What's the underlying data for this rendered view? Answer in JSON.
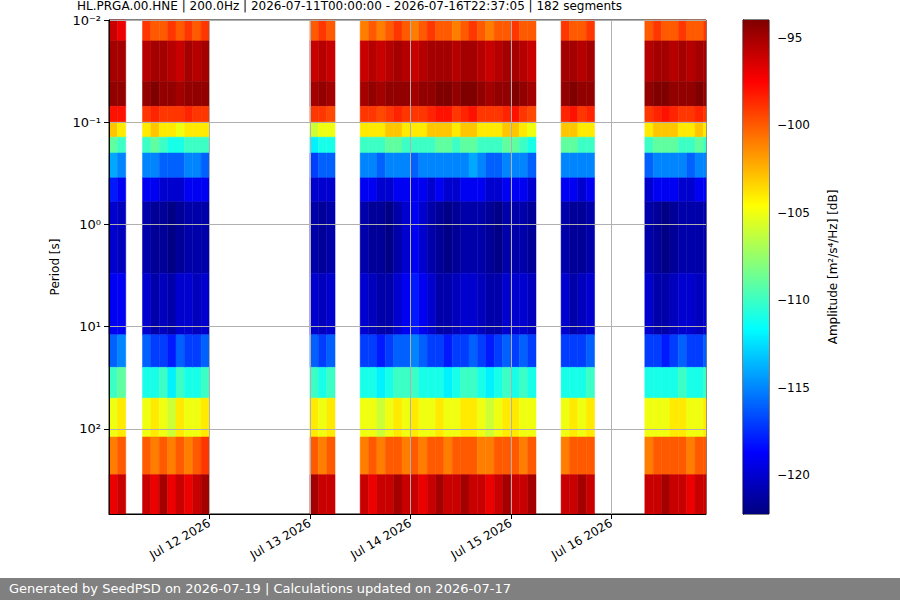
{
  "chart_data": {
    "type": "heatmap",
    "title": "HL.PRGA.00.HNE | 200.0Hz | 2026-07-11T00:00:00 - 2026-07-16T22:37:05 | 182 segments",
    "y_label": "Period [s]",
    "footer": "Generated by SeedPSD on 2026-07-19 | Calculations updated on 2026-07-17",
    "log": "y",
    "grid": true,
    "xlim": [
      "2026-07-11T00:00",
      "2026-07-16T22:37:05"
    ],
    "xticks": [
      {
        "value": "2026-07-12T00:00",
        "label": "Jul 12 2026"
      },
      {
        "value": "2026-07-13T00:00",
        "label": "Jul 13 2026"
      },
      {
        "value": "2026-07-14T00:00",
        "label": "Jul 14 2026"
      },
      {
        "value": "2026-07-15T00:00",
        "label": "Jul 15 2026"
      },
      {
        "value": "2026-07-16T00:00",
        "label": "Jul 16 2026"
      }
    ],
    "ylim": [
      0.01,
      680
    ],
    "yticks": [
      {
        "value": 0.01,
        "label": "10⁻²"
      },
      {
        "value": 0.1,
        "label": "10⁻¹"
      },
      {
        "value": 1,
        "label": "10⁰"
      },
      {
        "value": 10,
        "label": "10¹"
      },
      {
        "value": 100,
        "label": "10²"
      }
    ],
    "colorbar": {
      "label": "Amplitude [m²/s⁴/Hz] [dB]",
      "range": [
        -122.2,
        -94
      ],
      "ticks": [
        {
          "value": -95,
          "label": "−95"
        },
        {
          "value": -100,
          "label": "−100"
        },
        {
          "value": -105,
          "label": "−105"
        },
        {
          "value": -110,
          "label": "−110"
        },
        {
          "value": -115,
          "label": "−115"
        },
        {
          "value": -120,
          "label": "−120"
        }
      ]
    },
    "period_edges": [
      0.01,
      0.016,
      0.04,
      0.07,
      0.1,
      0.14,
      0.2,
      0.35,
      0.6,
      3,
      12,
      25,
      50,
      120,
      280,
      680
    ],
    "time_edges": [
      "2026-07-11T00:00",
      "2026-07-11T02:00",
      "2026-07-11T04:00",
      "2026-07-11T06:00",
      "2026-07-11T08:00",
      "2026-07-11T10:00",
      "2026-07-11T12:00",
      "2026-07-11T14:00",
      "2026-07-11T16:00",
      "2026-07-11T18:00",
      "2026-07-11T20:00",
      "2026-07-11T22:00",
      "2026-07-12T00:00",
      "2026-07-12T02:00",
      "2026-07-12T04:00",
      "2026-07-12T06:00",
      "2026-07-12T08:00",
      "2026-07-12T10:00",
      "2026-07-12T12:00",
      "2026-07-12T14:00",
      "2026-07-12T16:00",
      "2026-07-12T18:00",
      "2026-07-12T20:00",
      "2026-07-12T22:00",
      "2026-07-13T00:00",
      "2026-07-13T02:00",
      "2026-07-13T04:00",
      "2026-07-13T06:00",
      "2026-07-13T08:00",
      "2026-07-13T10:00",
      "2026-07-13T12:00",
      "2026-07-13T14:00",
      "2026-07-13T16:00",
      "2026-07-13T18:00",
      "2026-07-13T20:00",
      "2026-07-13T22:00",
      "2026-07-14T00:00",
      "2026-07-14T02:00",
      "2026-07-14T04:00",
      "2026-07-14T06:00",
      "2026-07-14T08:00",
      "2026-07-14T10:00",
      "2026-07-14T12:00",
      "2026-07-14T14:00",
      "2026-07-14T16:00",
      "2026-07-14T18:00",
      "2026-07-14T20:00",
      "2026-07-14T22:00",
      "2026-07-15T00:00",
      "2026-07-15T02:00",
      "2026-07-15T04:00",
      "2026-07-15T06:00",
      "2026-07-15T08:00",
      "2026-07-15T10:00",
      "2026-07-15T12:00",
      "2026-07-15T14:00",
      "2026-07-15T16:00",
      "2026-07-15T18:00",
      "2026-07-15T20:00",
      "2026-07-15T22:00",
      "2026-07-16T00:00",
      "2026-07-16T02:00",
      "2026-07-16T04:00",
      "2026-07-16T06:00",
      "2026-07-16T08:00",
      "2026-07-16T10:00",
      "2026-07-16T12:00",
      "2026-07-16T14:00",
      "2026-07-16T16:00",
      "2026-07-16T18:00",
      "2026-07-16T20:00",
      "2026-07-16T22:00",
      "2026-07-16T22:37:05"
    ],
    "cells": [
      [
        -96,
        -95,
        -94.5,
        -98,
        -103,
        -109,
        -114,
        -118,
        -120,
        -119,
        -116,
        -110,
        -105,
        -101,
        -97
      ],
      [
        -97,
        -95,
        -94.5,
        -98,
        -104,
        -110,
        -115,
        -119,
        -120.5,
        -119,
        -115,
        -109,
        -104,
        -100,
        -96
      ],
      null,
      null,
      [
        -99,
        -95.5,
        -94.5,
        -99,
        -104,
        -110,
        -115,
        -119,
        -121,
        -120,
        -116,
        -111,
        -105,
        -100,
        -96
      ],
      [
        -100,
        -95,
        -94,
        -98.5,
        -103,
        -109,
        -115,
        -119,
        -121.5,
        -121,
        -117,
        -111,
        -104,
        -101,
        -97
      ],
      [
        -100,
        -95,
        -94.5,
        -99,
        -104,
        -110,
        -116,
        -120,
        -121.5,
        -120.5,
        -117,
        -110,
        -105,
        -100,
        -95
      ],
      [
        -99,
        -95.5,
        -94.5,
        -99,
        -104,
        -111,
        -116,
        -120,
        -122,
        -121,
        -118,
        -112,
        -106,
        -101,
        -97
      ],
      [
        -100,
        -96,
        -95,
        -99,
        -105,
        -111,
        -116,
        -120,
        -121.5,
        -120,
        -116,
        -110,
        -104,
        -100,
        -96
      ],
      [
        -99,
        -95,
        -94.5,
        -98.5,
        -104,
        -110,
        -115,
        -119,
        -121,
        -120,
        -117,
        -111,
        -105,
        -101,
        -97
      ],
      [
        -100,
        -95.5,
        -94.5,
        -99,
        -104,
        -110,
        -115,
        -119,
        -121,
        -120.5,
        -117,
        -111,
        -105,
        -100,
        -96
      ],
      [
        -99,
        -95,
        -94.5,
        -99,
        -104,
        -110,
        -116,
        -119,
        -121,
        -120,
        -116,
        -110,
        -104,
        -99,
        -95
      ],
      null,
      null,
      null,
      null,
      null,
      null,
      null,
      null,
      null,
      null,
      null,
      null,
      [
        -100,
        -96,
        -95,
        -99,
        -106,
        -112,
        -117,
        -120,
        -121,
        -120,
        -116,
        -110,
        -104,
        -100,
        -95
      ],
      [
        -99,
        -95.5,
        -94.5,
        -99,
        -105,
        -111,
        -116,
        -120,
        -121.5,
        -120.5,
        -117,
        -111,
        -105,
        -101,
        -96
      ],
      [
        -100,
        -96,
        -95,
        -99.5,
        -105,
        -111,
        -116,
        -120,
        -121,
        -120,
        -116,
        -110,
        -104,
        -100,
        -96
      ],
      null,
      null,
      null,
      [
        -101,
        -96,
        -95,
        -99,
        -104,
        -110,
        -115,
        -119,
        -121,
        -120,
        -117,
        -111,
        -105,
        -101,
        -96
      ],
      [
        -100,
        -95.5,
        -94.5,
        -99,
        -104,
        -110,
        -115,
        -119,
        -121.5,
        -120.5,
        -117,
        -111,
        -105,
        -100,
        -97
      ],
      [
        -101,
        -96,
        -95,
        -99.5,
        -104,
        -110,
        -116,
        -120,
        -121.5,
        -121,
        -118,
        -112,
        -106,
        -101,
        -96
      ],
      [
        -100,
        -95.5,
        -94.5,
        -99,
        -103,
        -109,
        -115,
        -120,
        -122,
        -121,
        -117,
        -111,
        -105,
        -100,
        -96
      ],
      [
        -99,
        -95,
        -94.5,
        -98.5,
        -103,
        -109,
        -115,
        -119,
        -121,
        -120,
        -116,
        -110,
        -104,
        -100,
        -95
      ],
      [
        -100,
        -95.5,
        -94.5,
        -99,
        -104,
        -110,
        -115,
        -119,
        -120,
        -119,
        -116,
        -110,
        -105,
        -101,
        -96
      ],
      [
        -101,
        -96,
        -95,
        -99,
        -104,
        -110,
        -116,
        -119,
        -119,
        -118,
        -115,
        -110,
        -104,
        -100,
        -96
      ],
      [
        -100,
        -95.5,
        -94.5,
        -99,
        -104,
        -110,
        -115,
        -119,
        -120,
        -119,
        -116,
        -111,
        -105,
        -101,
        -97
      ],
      [
        -99,
        -95,
        -94.5,
        -98.5,
        -103,
        -110,
        -115,
        -120,
        -121,
        -120,
        -117,
        -111,
        -105,
        -100,
        -96
      ],
      [
        -100,
        -95,
        -94,
        -98,
        -103,
        -109,
        -115,
        -119,
        -121.5,
        -121,
        -117,
        -111,
        -104,
        -100,
        -95
      ],
      [
        -100,
        -95,
        -94,
        -98,
        -103,
        -109,
        -115,
        -120,
        -122,
        -121,
        -118,
        -112,
        -105,
        -101,
        -96
      ],
      [
        -101,
        -95.5,
        -94.5,
        -99,
        -104,
        -110,
        -115,
        -120,
        -121.5,
        -120.5,
        -117,
        -111,
        -105,
        -100,
        -96
      ],
      [
        -100,
        -95,
        -94,
        -98.5,
        -103,
        -109,
        -115,
        -119,
        -121,
        -120,
        -117,
        -110,
        -104,
        -100,
        -95
      ],
      [
        -99,
        -95,
        -94,
        -98,
        -103,
        -109,
        -114,
        -119,
        -121,
        -120,
        -116,
        -110,
        -104,
        -100,
        -96
      ],
      [
        -100,
        -95.5,
        -94.5,
        -99,
        -104,
        -110,
        -115,
        -119,
        -121,
        -120.5,
        -117,
        -111,
        -105,
        -101,
        -96
      ],
      [
        -101,
        -96,
        -95,
        -99,
        -104,
        -110,
        -116,
        -120,
        -121.5,
        -121,
        -118,
        -112,
        -106,
        -101,
        -97
      ],
      [
        -100,
        -95.5,
        -94.5,
        -99,
        -104,
        -110,
        -116,
        -120,
        -122,
        -121,
        -117,
        -111,
        -105,
        -100,
        -96
      ],
      [
        -100,
        -95,
        -94.5,
        -98.5,
        -103,
        -109,
        -115,
        -119,
        -121,
        -120,
        -116,
        -110,
        -104,
        -100,
        -95
      ],
      [
        -99,
        -95,
        -94,
        -98,
        -103,
        -109,
        -115,
        -119,
        -121,
        -120,
        -117,
        -111,
        -104,
        -100,
        -96
      ],
      [
        -100,
        -95.5,
        -94.5,
        -99,
        -104,
        -110,
        -115,
        -119,
        -121,
        -120,
        -116,
        -110,
        -105,
        -101,
        -96
      ],
      [
        -100,
        -96,
        -95,
        -99.5,
        -105,
        -111,
        -116,
        -120,
        -121.5,
        -120.5,
        -117,
        -111,
        -105,
        -100,
        -95
      ],
      null,
      null,
      null,
      [
        -99,
        -95,
        -94.5,
        -98.5,
        -103,
        -109,
        -115,
        -119,
        -121,
        -120,
        -117,
        -111,
        -105,
        -101,
        -96
      ],
      [
        -100,
        -95,
        -94,
        -98,
        -103,
        -109,
        -115,
        -119,
        -121.5,
        -121,
        -117,
        -111,
        -104,
        -100,
        -96
      ],
      [
        -100,
        -95.5,
        -94.5,
        -99,
        -104,
        -110,
        -115,
        -120,
        -121.5,
        -120.5,
        -117,
        -111,
        -105,
        -100,
        -95
      ],
      [
        -99,
        -95,
        -94.5,
        -98.5,
        -104,
        -110,
        -115,
        -119,
        -121,
        -120,
        -116,
        -110,
        -104,
        -100,
        -96
      ],
      null,
      null,
      null,
      null,
      null,
      null,
      [
        -100,
        -95.5,
        -94.5,
        -99,
        -104,
        -110,
        -116,
        -120,
        -121,
        -120,
        -117,
        -111,
        -105,
        -101,
        -96
      ],
      [
        -99,
        -95,
        -94,
        -98.5,
        -103,
        -109,
        -115,
        -119,
        -121.5,
        -121,
        -117,
        -111,
        -105,
        -100,
        -96
      ],
      [
        -100,
        -95,
        -94,
        -98,
        -103,
        -109,
        -115,
        -119,
        -122,
        -121,
        -118,
        -111,
        -105,
        -100,
        -95
      ],
      [
        -100,
        -95.5,
        -94.5,
        -98.5,
        -103,
        -109,
        -115,
        -119,
        -121.5,
        -120.5,
        -117,
        -111,
        -104,
        -100,
        -96
      ],
      [
        -99,
        -95,
        -94.5,
        -99,
        -104,
        -110,
        -115,
        -120,
        -121,
        -120,
        -116,
        -110,
        -104,
        -100,
        -96
      ],
      [
        -100,
        -95.5,
        -94.5,
        -99,
        -104,
        -110,
        -116,
        -120,
        -121,
        -120,
        -117,
        -111,
        -105,
        -101,
        -97
      ],
      [
        -100,
        -95,
        -94,
        -98.5,
        -103,
        -109,
        -115,
        -119,
        -121,
        -120.5,
        -117,
        -111,
        -105,
        -100,
        -96
      ],
      [
        -99,
        -95,
        -94.5,
        -99,
        -104,
        -110,
        -115,
        -119,
        -121,
        -120,
        -116,
        -110,
        -104,
        -100,
        -96
      ]
    ]
  }
}
